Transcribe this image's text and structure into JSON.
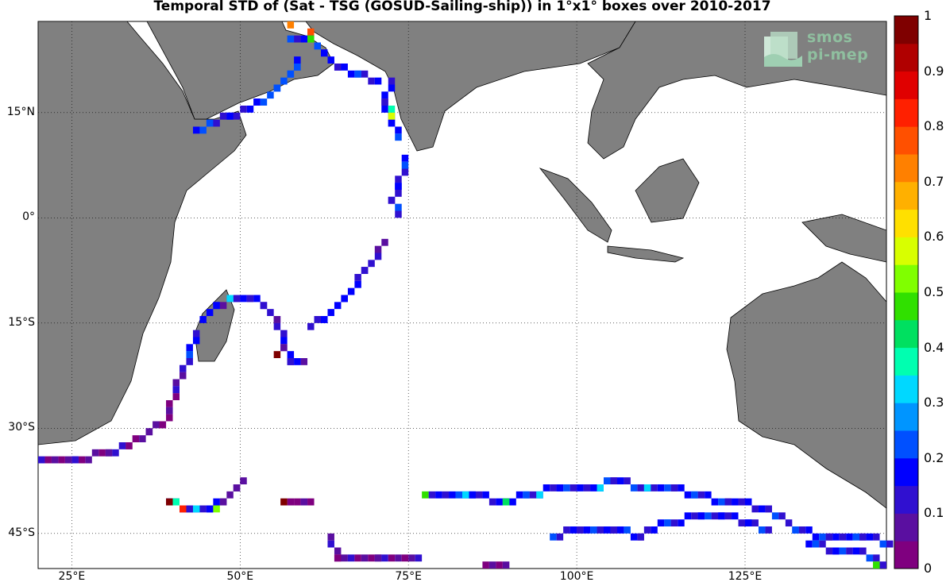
{
  "title": "Temporal STD of (Sat - TSG (GOSUD-Sailing-ship)) in 1°x1° boxes over 2010-2017",
  "logo": {
    "line1": "smos",
    "line2": "pi-mep"
  },
  "map": {
    "lon_range": [
      20,
      146
    ],
    "lat_range": [
      -50,
      28
    ],
    "lat_ticks": [
      {
        "value": 15,
        "label": "15°N"
      },
      {
        "value": 0,
        "label": "0°"
      },
      {
        "value": -15,
        "label": "15°S"
      },
      {
        "value": -30,
        "label": "30°S"
      },
      {
        "value": -45,
        "label": "45°S"
      }
    ],
    "lon_ticks": [
      {
        "value": 25,
        "label": "25°E"
      },
      {
        "value": 50,
        "label": "50°E"
      },
      {
        "value": 75,
        "label": "75°E"
      },
      {
        "value": 100,
        "label": "100°E"
      },
      {
        "value": 125,
        "label": "125°E"
      }
    ],
    "land_color": "#808080",
    "grid": "dotted"
  },
  "colorbar": {
    "range": [
      0,
      1
    ],
    "labels": [
      "1",
      "0.9",
      "0.8",
      "0.7",
      "0.6",
      "0.5",
      "0.4",
      "0.3",
      "0.2",
      "0.1",
      "0"
    ],
    "colors": [
      "#7f007f",
      "#5a0fa0",
      "#3010d0",
      "#0000ff",
      "#0050ff",
      "#0095ff",
      "#00d8ff",
      "#00ffb0",
      "#00e060",
      "#30e000",
      "#80ff00",
      "#d8ff00",
      "#ffe000",
      "#ffb000",
      "#ff8000",
      "#ff5000",
      "#ff2000",
      "#e00000",
      "#b00000",
      "#7f0000"
    ]
  },
  "tracks": [
    {
      "name": "red-sea-gulf-of-aden",
      "level": 0.12,
      "points": [
        [
          43,
          12
        ],
        [
          45,
          12.5
        ],
        [
          48,
          14
        ],
        [
          52,
          15.5
        ],
        [
          55,
          17.5
        ],
        [
          57,
          19.5
        ],
        [
          58,
          21
        ],
        [
          57.5,
          22.5
        ]
      ]
    },
    {
      "name": "arabian-sea-north",
      "level": 0.1,
      "points": [
        [
          57,
          25
        ],
        [
          60,
          25
        ],
        [
          62,
          23
        ],
        [
          64,
          21
        ],
        [
          67,
          20
        ],
        [
          70,
          19
        ]
      ]
    },
    {
      "name": "west-india-coast",
      "level": 0.12,
      "points": [
        [
          72,
          19
        ],
        [
          71,
          16
        ],
        [
          72,
          13
        ],
        [
          73,
          11
        ]
      ]
    },
    {
      "name": "maldives-line",
      "level": 0.12,
      "points": [
        [
          74,
          8
        ],
        [
          73,
          4
        ],
        [
          72,
          2
        ],
        [
          73,
          0
        ]
      ]
    },
    {
      "name": "central-indian-diag",
      "level": 0.08,
      "points": [
        [
          71,
          -4
        ],
        [
          68,
          -8
        ],
        [
          65,
          -12
        ],
        [
          62,
          -15
        ],
        [
          60,
          -16
        ]
      ]
    },
    {
      "name": "madagascar-loop",
      "level": 0.08,
      "points": [
        [
          44,
          -15
        ],
        [
          46,
          -13
        ],
        [
          49,
          -12
        ],
        [
          51,
          -12
        ],
        [
          53,
          -13
        ],
        [
          55,
          -15
        ],
        [
          56,
          -19
        ],
        [
          57,
          -21
        ],
        [
          59,
          -21
        ]
      ]
    },
    {
      "name": "mozambique-channel",
      "level": 0.1,
      "points": [
        [
          43,
          -17
        ],
        [
          42,
          -20
        ],
        [
          41,
          -22
        ],
        [
          40,
          -25
        ],
        [
          39,
          -28
        ],
        [
          38,
          -30
        ],
        [
          36,
          -31
        ],
        [
          33,
          -33
        ],
        [
          30,
          -34
        ],
        [
          25,
          -35
        ],
        [
          20,
          -35
        ]
      ]
    },
    {
      "name": "south-track-west",
      "level": 0.18,
      "points": [
        [
          39,
          -41
        ],
        [
          42,
          -42
        ],
        [
          45,
          -42
        ],
        [
          47,
          -41
        ],
        [
          49,
          -39
        ],
        [
          50,
          -38
        ]
      ]
    },
    {
      "name": "south-track-mid",
      "level": 0.08,
      "points": [
        [
          57,
          -41
        ],
        [
          60,
          -41
        ]
      ]
    },
    {
      "name": "south-track-main",
      "level": 0.1,
      "points": [
        [
          78,
          -40
        ],
        [
          84,
          -40
        ],
        [
          89,
          -41
        ],
        [
          92,
          -40
        ],
        [
          97,
          -39
        ],
        [
          103,
          -39
        ],
        [
          105,
          -38
        ],
        [
          110,
          -39
        ],
        [
          114,
          -39
        ],
        [
          117,
          -40
        ],
        [
          122,
          -41
        ],
        [
          128,
          -42
        ],
        [
          132,
          -45
        ],
        [
          137,
          -46
        ],
        [
          142,
          -46
        ],
        [
          146,
          -47
        ]
      ]
    },
    {
      "name": "south-track-east",
      "level": 0.1,
      "points": [
        [
          96,
          -46
        ],
        [
          100,
          -45
        ],
        [
          105,
          -45
        ],
        [
          109,
          -46
        ],
        [
          113,
          -44
        ],
        [
          118,
          -43
        ],
        [
          121,
          -43
        ],
        [
          125,
          -44
        ],
        [
          128,
          -45
        ]
      ]
    },
    {
      "name": "far-south",
      "level": 0.1,
      "points": [
        [
          63,
          -46
        ],
        [
          64,
          -49
        ],
        [
          70,
          -49
        ],
        [
          76,
          -49
        ]
      ]
    },
    {
      "name": "far-south-east",
      "level": 0.1,
      "points": [
        [
          86,
          -50
        ],
        [
          89,
          -50
        ]
      ]
    },
    {
      "name": "aust-south",
      "level": 0.1,
      "points": [
        [
          134,
          -47
        ],
        [
          138,
          -48
        ],
        [
          142,
          -48
        ],
        [
          145,
          -50
        ]
      ]
    }
  ],
  "hot_cells": [
    {
      "lon": 57,
      "lat": 27,
      "level": 0.7
    },
    {
      "lon": 60,
      "lat": 26,
      "level": 0.75
    },
    {
      "lon": 60,
      "lat": 25,
      "level": 0.45
    },
    {
      "lon": 72,
      "lat": 14,
      "level": 0.55
    },
    {
      "lon": 72,
      "lat": 15,
      "level": 0.35
    },
    {
      "lon": 39,
      "lat": -41,
      "level": 0.95
    },
    {
      "lon": 40,
      "lat": -41,
      "level": 0.35
    },
    {
      "lon": 41,
      "lat": -42,
      "level": 0.8
    },
    {
      "lon": 43,
      "lat": -42,
      "level": 0.3
    },
    {
      "lon": 46,
      "lat": -42,
      "level": 0.5
    },
    {
      "lon": 56,
      "lat": -41,
      "level": 0.95
    },
    {
      "lon": 77,
      "lat": -40,
      "level": 0.45
    },
    {
      "lon": 83,
      "lat": -40,
      "level": 0.3
    },
    {
      "lon": 89,
      "lat": -41,
      "level": 0.4
    },
    {
      "lon": 94,
      "lat": -40,
      "level": 0.3
    },
    {
      "lon": 103,
      "lat": -39,
      "level": 0.3
    },
    {
      "lon": 110,
      "lat": -39,
      "level": 0.3
    },
    {
      "lon": 144,
      "lat": -50,
      "level": 0.45
    },
    {
      "lon": 55,
      "lat": -20,
      "level": 0.95
    },
    {
      "lon": 48,
      "lat": -12,
      "level": 0.3
    }
  ]
}
